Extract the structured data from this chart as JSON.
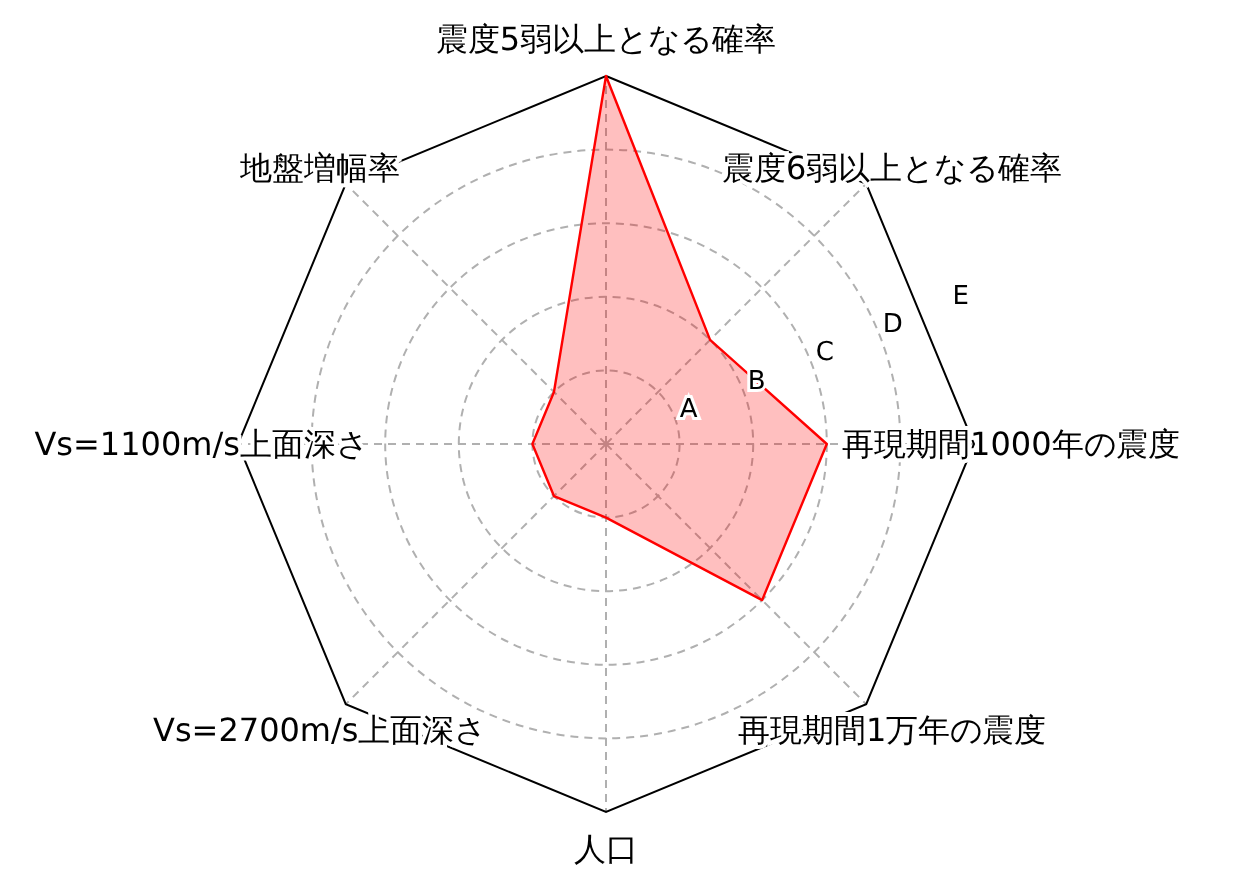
{
  "chart_data": {
    "type": "radar",
    "categories": [
      "震度5弱以上となる確率",
      "震度6弱以上となる確率",
      "再現期間1000年の震度",
      "再現期間1万年の震度",
      "人口",
      "Vs=2700m/s上面深さ",
      "Vs=1100m/s上面深さ",
      "地盤増幅率"
    ],
    "series": [
      {
        "color": "#ff0000",
        "values": [
          5,
          2,
          3,
          3,
          1,
          1,
          1,
          1
        ]
      }
    ],
    "ylim": [
      0,
      5
    ],
    "yticks": [
      {
        "value": 1,
        "label": "A"
      },
      {
        "value": 2,
        "label": "B"
      },
      {
        "value": 3,
        "label": "C"
      },
      {
        "value": 4,
        "label": "D"
      },
      {
        "value": 5,
        "label": "E"
      }
    ],
    "grid": true
  }
}
